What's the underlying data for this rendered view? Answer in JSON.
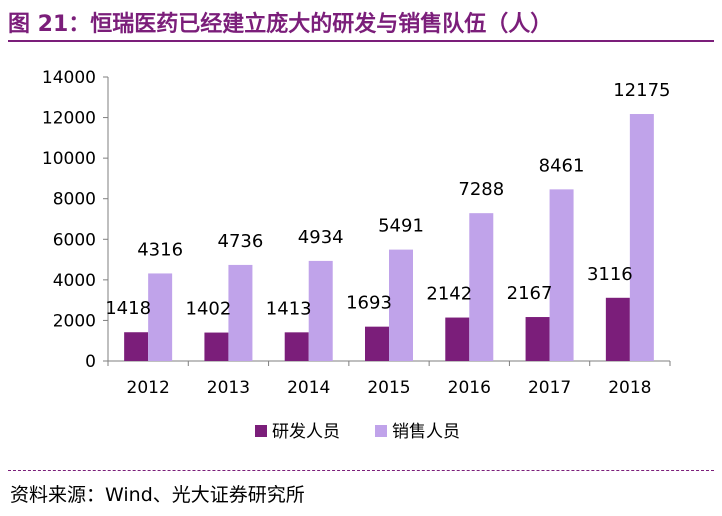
{
  "header": {
    "title": "图 21：恒瑞医药已经建立庞大的研发与销售队伍（人）"
  },
  "footer": {
    "source": "资料来源：Wind、光大证券研究所"
  },
  "colors": {
    "accent": "#7b1e7a",
    "series_rd": "#7b1e7a",
    "series_sales": "#c0a3ea"
  },
  "chart_data": {
    "type": "bar",
    "categories": [
      "2012",
      "2013",
      "2014",
      "2015",
      "2016",
      "2017",
      "2018"
    ],
    "series": [
      {
        "name": "研发人员",
        "values": [
          1418,
          1402,
          1413,
          1693,
          2142,
          2167,
          3116
        ]
      },
      {
        "name": "销售人员",
        "values": [
          4316,
          4736,
          4934,
          5491,
          7288,
          8461,
          12175
        ]
      }
    ],
    "ylim": [
      0,
      14000
    ],
    "yticks": [
      0,
      2000,
      4000,
      6000,
      8000,
      10000,
      12000,
      14000
    ],
    "legend_position": "bottom",
    "grid": false
  }
}
